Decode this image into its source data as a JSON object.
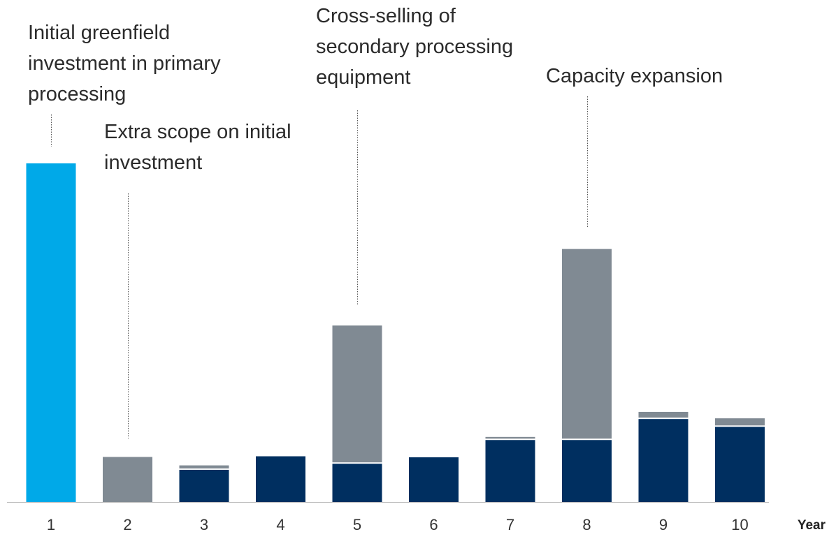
{
  "chart_data": {
    "type": "bar",
    "stacked": true,
    "categories": [
      "1",
      "2",
      "3",
      "4",
      "5",
      "6",
      "7",
      "8",
      "9",
      "10"
    ],
    "xlabel": "Year",
    "ylabel": "",
    "ylim": [
      0,
      100
    ],
    "grid": false,
    "series": [
      {
        "color": "#00A9E8",
        "values": [
          100,
          0,
          0,
          0,
          0,
          0,
          0,
          0,
          0,
          0
        ]
      },
      {
        "color": "#002F60",
        "values": [
          0,
          0,
          9.5,
          13.5,
          11.3,
          13.2,
          18.3,
          18.3,
          24.5,
          22.2
        ]
      },
      {
        "color": "#808A93",
        "values": [
          0,
          13.3,
          0.9,
          0,
          40.4,
          0,
          0.5,
          56.0,
          1.7,
          2.1
        ]
      }
    ],
    "annotations": [
      {
        "lines": [
          "Initial greenfield",
          "investment in primary",
          "processing"
        ],
        "category": "1"
      },
      {
        "lines": [
          "Extra scope on initial",
          "investment"
        ],
        "category": "2"
      },
      {
        "lines": [
          "Cross-selling of",
          "secondary processing",
          "equipment"
        ],
        "category": "5"
      },
      {
        "lines": [
          "Capacity expansion"
        ],
        "category": "8"
      }
    ]
  }
}
